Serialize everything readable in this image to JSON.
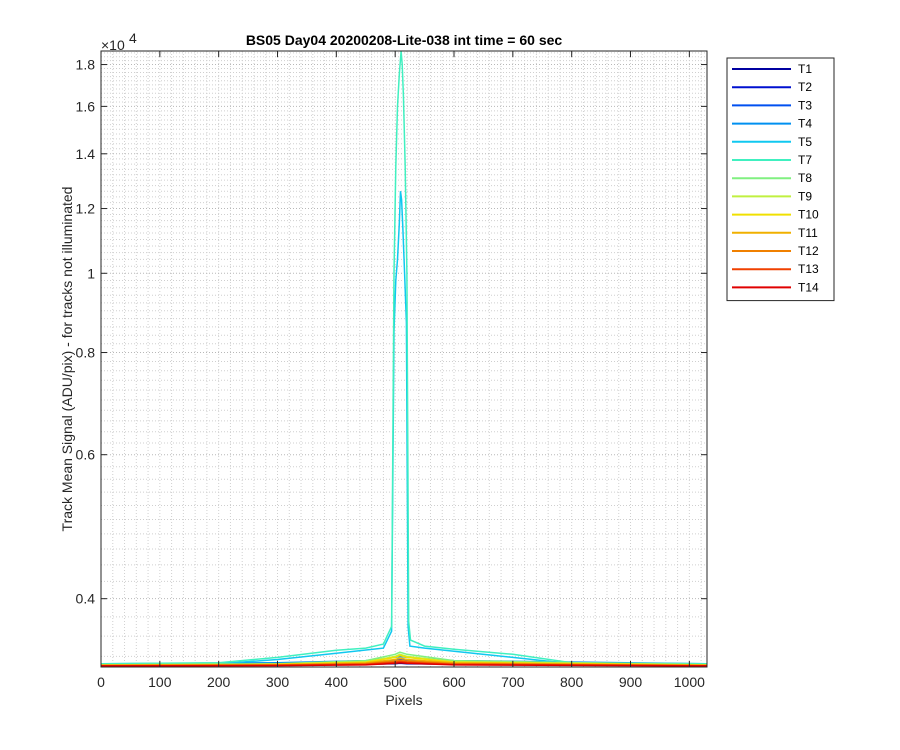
{
  "chart_data": {
    "type": "line",
    "title": "BS05 Day04 20200208-Lite-038 int time = 60 sec",
    "xlabel": "Pixels",
    "ylabel": "Track Mean Signal (ADU/pix) - for tracks not illuminated",
    "xlim": [
      0,
      1030
    ],
    "ylim": [
      3300,
      18700
    ],
    "y_scale": "log",
    "y_exponent_label": "×10^4",
    "x_ticks": [
      0,
      100,
      200,
      300,
      400,
      500,
      600,
      700,
      800,
      900,
      1000
    ],
    "y_ticks": [
      4000,
      6000,
      8000,
      10000,
      12000,
      14000,
      16000,
      18000
    ],
    "y_tick_labels": [
      "0.4",
      "0.6",
      "0.8",
      "1",
      "1.2",
      "1.4",
      "1.6",
      "1.8"
    ],
    "grid": "major and minor (dotted)",
    "legend_position": "outside-right",
    "series": [
      {
        "name": "T1",
        "color": "#0000a0",
        "x": [
          0,
          300,
          450,
          500,
          508,
          520,
          600,
          1030
        ],
        "y": [
          3320,
          3322,
          3325,
          3330,
          3335,
          3330,
          3325,
          3320
        ]
      },
      {
        "name": "T2",
        "color": "#0010d0",
        "x": [
          0,
          300,
          450,
          500,
          508,
          520,
          600,
          1030
        ],
        "y": [
          3322,
          3325,
          3330,
          3340,
          3345,
          3340,
          3330,
          3322
        ]
      },
      {
        "name": "T3",
        "color": "#0050f0",
        "x": [
          0,
          300,
          450,
          500,
          508,
          520,
          600,
          1030
        ],
        "y": [
          3325,
          3330,
          3340,
          3360,
          3370,
          3360,
          3340,
          3325
        ]
      },
      {
        "name": "T4",
        "color": "#0090f0",
        "x": [
          0,
          300,
          450,
          500,
          508,
          520,
          600,
          1030
        ],
        "y": [
          3330,
          3340,
          3360,
          3390,
          3400,
          3390,
          3360,
          3330
        ]
      },
      {
        "name": "T5",
        "color": "#10c8f0",
        "x": [
          0,
          200,
          300,
          400,
          480,
          494,
          498,
          501,
          504,
          507,
          509,
          511,
          513,
          516,
          519,
          522,
          525,
          550,
          600,
          700,
          800,
          1030
        ],
        "y": [
          3320,
          3330,
          3370,
          3430,
          3480,
          3650,
          8500,
          9800,
          10400,
          11500,
          12600,
          12300,
          11400,
          10000,
          8700,
          3700,
          3500,
          3480,
          3450,
          3390,
          3330,
          3320
        ]
      },
      {
        "name": "T7",
        "color": "#40f0c0",
        "x": [
          0,
          200,
          300,
          400,
          450,
          480,
          494,
          498,
          501,
          504,
          507,
          510,
          512,
          514,
          517,
          520,
          523,
          526,
          550,
          600,
          700,
          800,
          1030
        ],
        "y": [
          3330,
          3340,
          3390,
          3460,
          3480,
          3520,
          3700,
          10000,
          13500,
          16000,
          17500,
          18700,
          18000,
          16500,
          13500,
          10000,
          3750,
          3560,
          3500,
          3470,
          3420,
          3340,
          3330
        ]
      },
      {
        "name": "T8",
        "color": "#80f080",
        "x": [
          0,
          300,
          450,
          500,
          508,
          520,
          600,
          1030
        ],
        "y": [
          3320,
          3330,
          3360,
          3420,
          3440,
          3420,
          3360,
          3320
        ]
      },
      {
        "name": "T9",
        "color": "#c0f040",
        "x": [
          0,
          300,
          450,
          500,
          508,
          520,
          600,
          1030
        ],
        "y": [
          3320,
          3328,
          3350,
          3400,
          3420,
          3400,
          3350,
          3320
        ]
      },
      {
        "name": "T10",
        "color": "#f0e000",
        "x": [
          0,
          300,
          450,
          500,
          508,
          520,
          600,
          1030
        ],
        "y": [
          3318,
          3325,
          3345,
          3390,
          3410,
          3390,
          3345,
          3318
        ]
      },
      {
        "name": "T11",
        "color": "#f0b000",
        "x": [
          0,
          300,
          450,
          500,
          508,
          520,
          600,
          1030
        ],
        "y": [
          3316,
          3322,
          3338,
          3370,
          3385,
          3370,
          3338,
          3316
        ]
      },
      {
        "name": "T12",
        "color": "#f08000",
        "x": [
          0,
          300,
          450,
          500,
          508,
          520,
          600,
          1030
        ],
        "y": [
          3314,
          3320,
          3332,
          3355,
          3365,
          3355,
          3332,
          3314
        ]
      },
      {
        "name": "T13",
        "color": "#f04000",
        "x": [
          0,
          300,
          450,
          500,
          508,
          520,
          600,
          1030
        ],
        "y": [
          3312,
          3316,
          3326,
          3345,
          3352,
          3345,
          3326,
          3312
        ]
      },
      {
        "name": "T14",
        "color": "#e00000",
        "x": [
          0,
          300,
          450,
          500,
          508,
          520,
          600,
          1030
        ],
        "y": [
          3310,
          3313,
          3320,
          3335,
          3340,
          3335,
          3320,
          3310
        ]
      }
    ]
  }
}
